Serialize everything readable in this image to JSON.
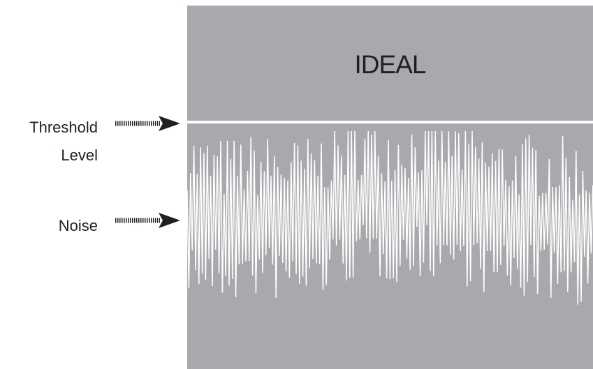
{
  "panel": {
    "title": "IDEAL"
  },
  "labels": {
    "threshold_line1": "Threshold",
    "threshold_line2": "Level",
    "noise": "Noise"
  },
  "icons": {
    "threshold_arrow": "dashed-right-arrow-icon",
    "noise_arrow": "dashed-right-arrow-icon"
  },
  "colors": {
    "panel_background": "#a7a9ac",
    "signal_lines": "#ffffff",
    "text": "#231f20"
  }
}
